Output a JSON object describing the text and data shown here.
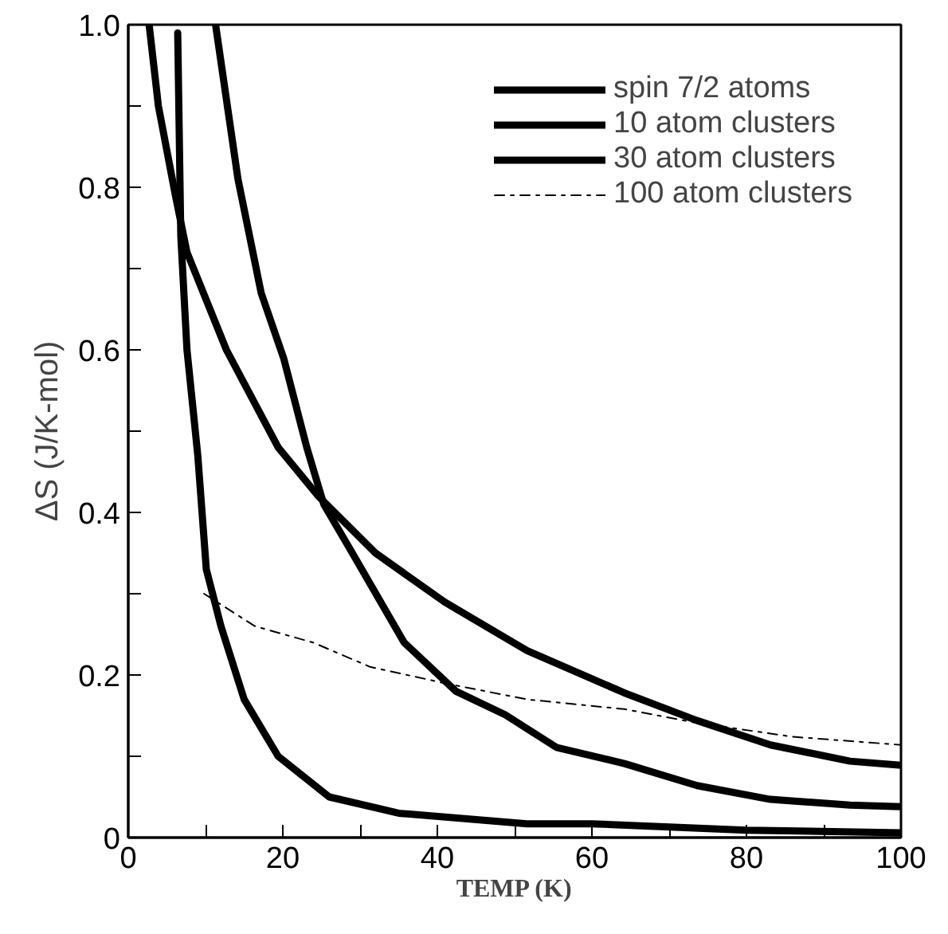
{
  "chart_data": {
    "type": "line",
    "xlabel": "TEMP (K)",
    "ylabel": "ΔS (J/K-mol)",
    "xlim": [
      0,
      100
    ],
    "ylim": [
      0,
      1.0
    ],
    "xticks": [
      0,
      {
        "value": 10,
        "label": null
      },
      20,
      {
        "value": 30,
        "label": null
      },
      40,
      {
        "value": 50,
        "label": null
      },
      60,
      {
        "value": 70,
        "label": null
      },
      80,
      {
        "value": 90,
        "label": null
      },
      100
    ],
    "yticks": [
      0,
      {
        "value": 0.1,
        "label": null
      },
      0.2,
      {
        "value": 0.3,
        "label": null
      },
      0.4,
      {
        "value": 0.5,
        "label": null
      },
      0.6,
      {
        "value": 0.7,
        "label": null
      },
      0.8,
      {
        "value": 0.9,
        "label": null
      },
      {
        "value": 1.0,
        "label": "1.0"
      }
    ],
    "grid": false,
    "legend": "top right",
    "marker": "none",
    "series": [
      {
        "name": "spin 7/2 atoms",
        "color": "#000000",
        "line_style": "solid",
        "x": [
          6.4,
          6.8,
          7.6,
          9.0,
          10.1,
          12,
          15,
          19.4,
          26,
          35,
          51.6,
          60,
          80,
          100
        ],
        "values": [
          0.99,
          0.74,
          0.6,
          0.47,
          0.33,
          0.26,
          0.17,
          0.1,
          0.05,
          0.03,
          0.017,
          0.017,
          0.009,
          0.006
        ]
      },
      {
        "name": "10 atom clusters",
        "color": "#000000",
        "line_style": "solid",
        "x": [
          2.7,
          3.9,
          6.1,
          7.6,
          12.7,
          19.4,
          24.6,
          32,
          40.9,
          51.6,
          64.2,
          73.6,
          83.1,
          93.4,
          100
        ],
        "values": [
          1.0,
          0.9,
          0.79,
          0.72,
          0.6,
          0.48,
          0.42,
          0.35,
          0.29,
          0.23,
          0.178,
          0.144,
          0.114,
          0.094,
          0.089
        ]
      },
      {
        "name": "30 atom clusters",
        "color": "#000000",
        "line_style": "solid",
        "x": [
          11.3,
          14.2,
          17.2,
          20.1,
          23.1,
          25.3,
          29,
          35.7,
          42.4,
          48.8,
          55.4,
          64.2,
          73.6,
          83.1,
          93.4,
          100
        ],
        "values": [
          1.0,
          0.81,
          0.67,
          0.59,
          0.48,
          0.41,
          0.35,
          0.24,
          0.18,
          0.151,
          0.111,
          0.091,
          0.064,
          0.047,
          0.04,
          0.038
        ]
      },
      {
        "name": "100 atom clusters",
        "color": "#000000",
        "line_style": "dashdot",
        "x": [
          9.8,
          16.4,
          23.9,
          31.3,
          40.9,
          51.6,
          64.2,
          73.6,
          86,
          100
        ],
        "values": [
          0.3,
          0.26,
          0.24,
          0.21,
          0.19,
          0.17,
          0.158,
          0.141,
          0.124,
          0.114
        ]
      }
    ]
  }
}
